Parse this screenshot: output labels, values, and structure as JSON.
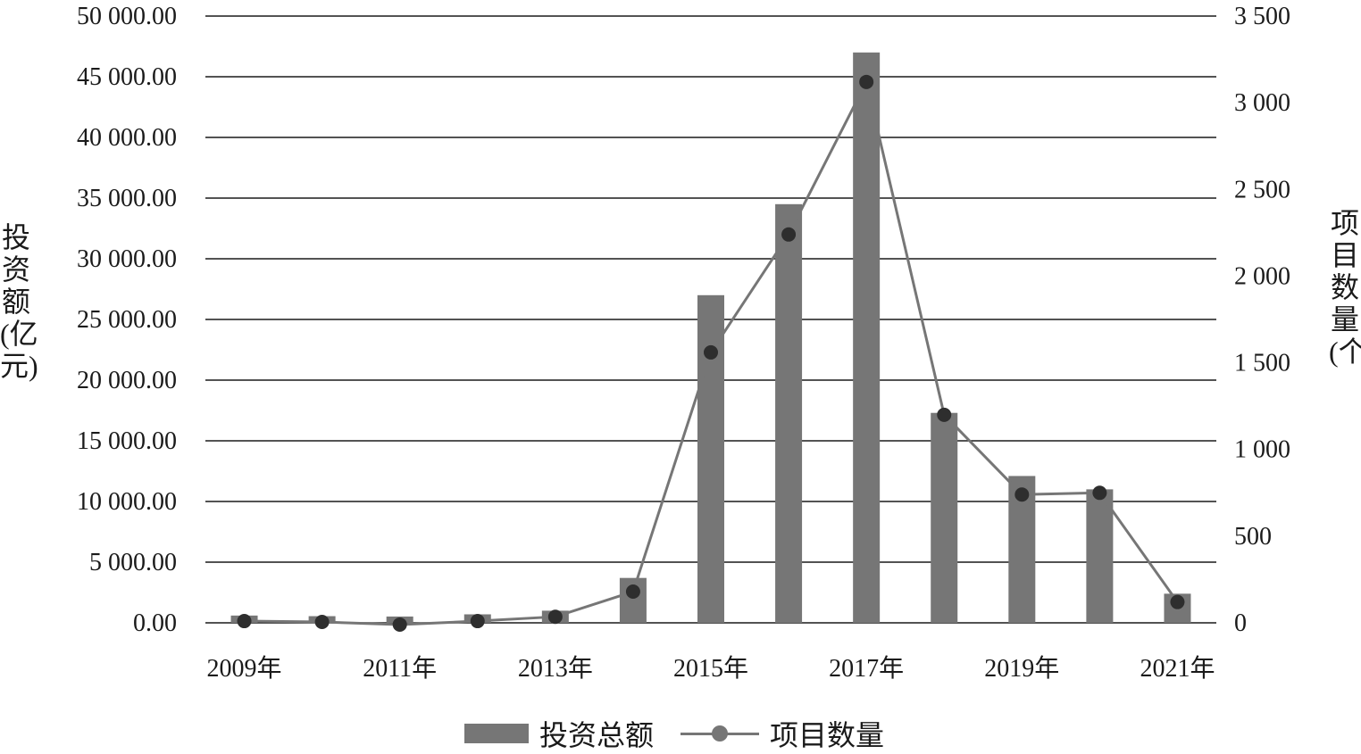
{
  "chart_data": {
    "type": "bar",
    "categories": [
      "2009年",
      "2010年",
      "2011年",
      "2012年",
      "2013年",
      "2014年",
      "2015年",
      "2016年",
      "2017年",
      "2018年",
      "2019年",
      "2020年",
      "2021年"
    ],
    "x_tick_labels": [
      "2009年",
      "2011年",
      "2013年",
      "2015年",
      "2017年",
      "2019年",
      "2021年"
    ],
    "ylabel": "投资额(亿元)",
    "y2label": "项目数量(个)",
    "ylim": [
      0,
      50000
    ],
    "y2lim": [
      0,
      3500
    ],
    "y_ticks": [
      "0.00",
      "5 000.00",
      "10 000.00",
      "15 000.00",
      "20 000.00",
      "25 000.00",
      "30 000.00",
      "35 000.00",
      "40 000.00",
      "45 000.00",
      "50 000.00"
    ],
    "y2_ticks": [
      "0",
      "500",
      "1 000",
      "1 500",
      "2 000",
      "2 500",
      "3 000",
      "3 500"
    ],
    "grid": true,
    "legend_position": "bottom",
    "series": [
      {
        "name": "投资总额",
        "type": "bar",
        "axis": "left",
        "color": "#767676",
        "values": [
          600,
          550,
          520,
          700,
          1000,
          3700,
          27000,
          34500,
          47000,
          17300,
          12100,
          11000,
          2400
        ]
      },
      {
        "name": "项目数量",
        "type": "line",
        "axis": "right",
        "color": "#767676",
        "marker_color": "#2e2e2e",
        "values": [
          10,
          5,
          -10,
          10,
          35,
          180,
          1560,
          2240,
          3120,
          1200,
          740,
          750,
          120
        ]
      }
    ]
  }
}
